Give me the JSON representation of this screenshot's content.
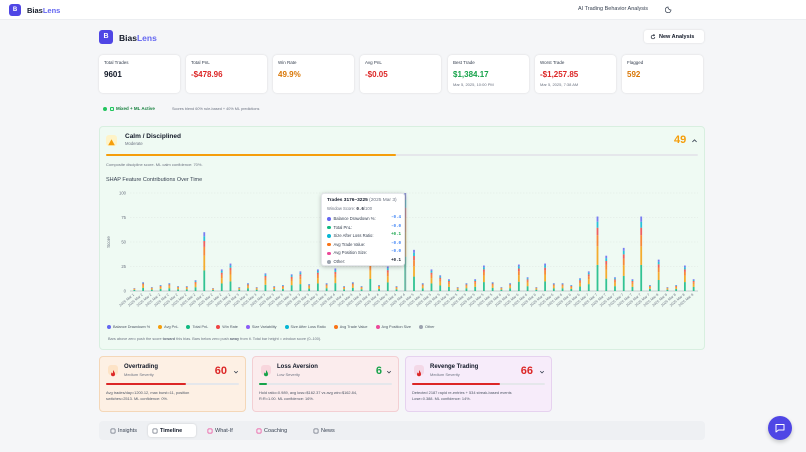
{
  "app": {
    "name_a": "Bias",
    "name_b": "Lens",
    "badge": "B",
    "subtitle": "AI Trading Behavior Analysis"
  },
  "header": {
    "new_analysis": "New Analysis"
  },
  "stats": [
    {
      "label": "Total Trades",
      "value": "9601",
      "sub": "",
      "color": "#111827"
    },
    {
      "label": "Total PnL",
      "value": "-$478.96",
      "sub": "",
      "color": "#dc2626"
    },
    {
      "label": "Win Rate",
      "value": "49.9%",
      "sub": "",
      "color": "#d97706"
    },
    {
      "label": "Avg PnL",
      "value": "-$0.05",
      "sub": "",
      "color": "#dc2626"
    },
    {
      "label": "Best Trade",
      "value": "$1,384.17",
      "sub": "Mar 5, 2025, 10:00 PM",
      "color": "#16a34a"
    },
    {
      "label": "Worst Trade",
      "value": "-$1,257.85",
      "sub": "Mar 5, 2025, 7:38 AM",
      "color": "#dc2626"
    },
    {
      "label": "Flagged",
      "value": "592",
      "sub": "",
      "color": "#d97706"
    }
  ],
  "mode": {
    "label": "Mixed + ML Active",
    "note": "Scores blend 60% rule-based + 40% ML predictions"
  },
  "discipline": {
    "title": "Calm / Disciplined",
    "level": "Moderate",
    "score": "49",
    "score_value": 49,
    "note": "Composite discipline score. ML calm confidence: 70%.",
    "color": "#f59e0b"
  },
  "chart_title": "SHAP Feature Contributions Over Time",
  "chart_note_parts": [
    "Bars above zero push the score ",
    "toward",
    " this bias. Bars below zero push ",
    "away",
    " from it. Total bar height = window score (0–100)."
  ],
  "chart_data": {
    "type": "bar",
    "stacked": true,
    "ylabel": "Score",
    "ylim": [
      0,
      100
    ],
    "yticks": [
      0,
      25,
      50,
      75,
      100
    ],
    "grid": true,
    "legend_position": "bottom",
    "categories": [
      "2025 Mar 1",
      "2025 Mar 2",
      "2025 Mar 2",
      "2025 Mar 2",
      "2025 Mar 2",
      "2025 Mar 2",
      "2025 Mar 2",
      "2025 Mar 2",
      "2025 Mar 2",
      "2025 Mar 2",
      "2025 Mar 2",
      "2025 Mar 2",
      "2025 Mar 3",
      "2025 Mar 3",
      "2025 Mar 3",
      "2025 Mar 3",
      "2025 Mar 3",
      "2025 Mar 3",
      "2025 Mar 3",
      "2025 Mar 3",
      "2025 Mar 3",
      "2025 Mar 3",
      "2025 Mar 4",
      "2025 Mar 4",
      "2025 Mar 4",
      "2025 Mar 4",
      "2025 Mar 4",
      "2025 Mar 4",
      "2025 Mar 4",
      "2025 Mar 4",
      "2025 Mar 4",
      "2025 Mar 4",
      "2025 Mar 5",
      "2025 Mar 5",
      "2025 Mar 5",
      "2025 Mar 5",
      "2025 Mar 5",
      "2025 Mar 5",
      "2025 Mar 5",
      "2025 Mar 5",
      "2025 Mar 5",
      "2025 Mar 5",
      "2025 Mar 6",
      "2025 Mar 6",
      "2025 Mar 6",
      "2025 Mar 6",
      "2025 Mar 6",
      "2025 Mar 6",
      "2025 Mar 6",
      "2025 Mar 6",
      "2025 Mar 6",
      "2025 Mar 6",
      "2025 Mar 7",
      "2025 Mar 7",
      "2025 Mar 7",
      "2025 Mar 7",
      "2025 Mar 7",
      "2025 Mar 7",
      "2025 Mar 7",
      "2025 Mar 7",
      "2025 Mar 8",
      "2025 Mar 8",
      "2025 Mar 8",
      "2025 Mar 8",
      "2025 Mar 8"
    ],
    "series": [
      {
        "name": "Balance Drawdown %",
        "color": "#6366f1"
      },
      {
        "name": "Avg PnL",
        "color": "#f59e0b"
      },
      {
        "name": "Total PnL",
        "color": "#10b981"
      },
      {
        "name": "Win Rate",
        "color": "#ef4444"
      },
      {
        "name": "Size Variability",
        "color": "#8b5cf6"
      },
      {
        "name": "Size After Loss Ratio",
        "color": "#06b6d4"
      },
      {
        "name": "Avg Trade Value",
        "color": "#f97316"
      },
      {
        "name": "Avg Position Size",
        "color": "#ec4899"
      },
      {
        "name": "Other",
        "color": "#9ca3af"
      }
    ],
    "totals": [
      3,
      9,
      4,
      6,
      8,
      5,
      5,
      11,
      60,
      3,
      22,
      28,
      4,
      8,
      4,
      18,
      5,
      6,
      17,
      20,
      7,
      22,
      8,
      23,
      5,
      9,
      5,
      35,
      6,
      25,
      5,
      100,
      42,
      8,
      22,
      16,
      12,
      4,
      8,
      12,
      26,
      9,
      4,
      8,
      27,
      14,
      4,
      28,
      8,
      8,
      6,
      13,
      20,
      76,
      36,
      14,
      44,
      12,
      76,
      6,
      32,
      4,
      6,
      26,
      12
    ],
    "highlight_index": 31
  },
  "tooltip": {
    "title": "Trades 3176–3225",
    "date": "(2025 Mar 3)",
    "window_label": "Window Score: ",
    "window_score": "0.6",
    "window_unit": "/100",
    "rows": [
      {
        "label": "Balance Drawdown %:",
        "value": "-0.4",
        "color": "#6366f1",
        "vcolor": "#3b82f6"
      },
      {
        "label": "Total PnL:",
        "value": "-0.0",
        "color": "#10b981",
        "vcolor": "#3b82f6"
      },
      {
        "label": "Size After Loss Ratio:",
        "value": "+0.1",
        "color": "#06b6d4",
        "vcolor": "#16a34a"
      },
      {
        "label": "Avg Trade Value:",
        "value": "-0.0",
        "color": "#f97316",
        "vcolor": "#3b82f6"
      },
      {
        "label": "Avg Position Size:",
        "value": "-0.0",
        "color": "#ec4899",
        "vcolor": "#3b82f6"
      },
      {
        "label": "Other:",
        "value": "+0.1",
        "color": "#9ca3af",
        "vcolor": "#111827"
      }
    ]
  },
  "biases": [
    {
      "title": "Overtrading",
      "severity": "Medium Severity",
      "score": "60",
      "score_value": 60,
      "color": "#dc2626",
      "bg": "#fdf0e4",
      "border": "#f4d7b8",
      "icon_bg": "#fde3c6",
      "desc_lines": [
        "Avg trades/day=1200.12, max burst=11, position",
        "switches=2513. ML confidence: 0%."
      ]
    },
    {
      "title": "Loss Aversion",
      "severity": "Low Severity",
      "score": "6",
      "score_value": 6,
      "color": "#16a34a",
      "bg": "#fbeced",
      "border": "#f3cfd3",
      "icon_bg": "#f8d6dd",
      "desc_lines": [
        "Hold ratio=0.989, avg loss=$162.37 vs avg win=$162.84,",
        "R:R=1.00. ML confidence: 16%."
      ]
    },
    {
      "title": "Revenge Trading",
      "severity": "Medium Severity",
      "score": "66",
      "score_value": 66,
      "color": "#dc2626",
      "bg": "#f7ecfa",
      "border": "#e6d2ef",
      "icon_bg": "#f3d8e7",
      "desc_lines": [
        "Detected 2187 rapid re-entries + 534 streak-based events",
        "Lose=0.388. ML confidence: 14%."
      ]
    }
  ],
  "tabs": [
    "Insights",
    "Timeline",
    "What-If",
    "Coaching",
    "News"
  ],
  "active_tab": "Timeline"
}
